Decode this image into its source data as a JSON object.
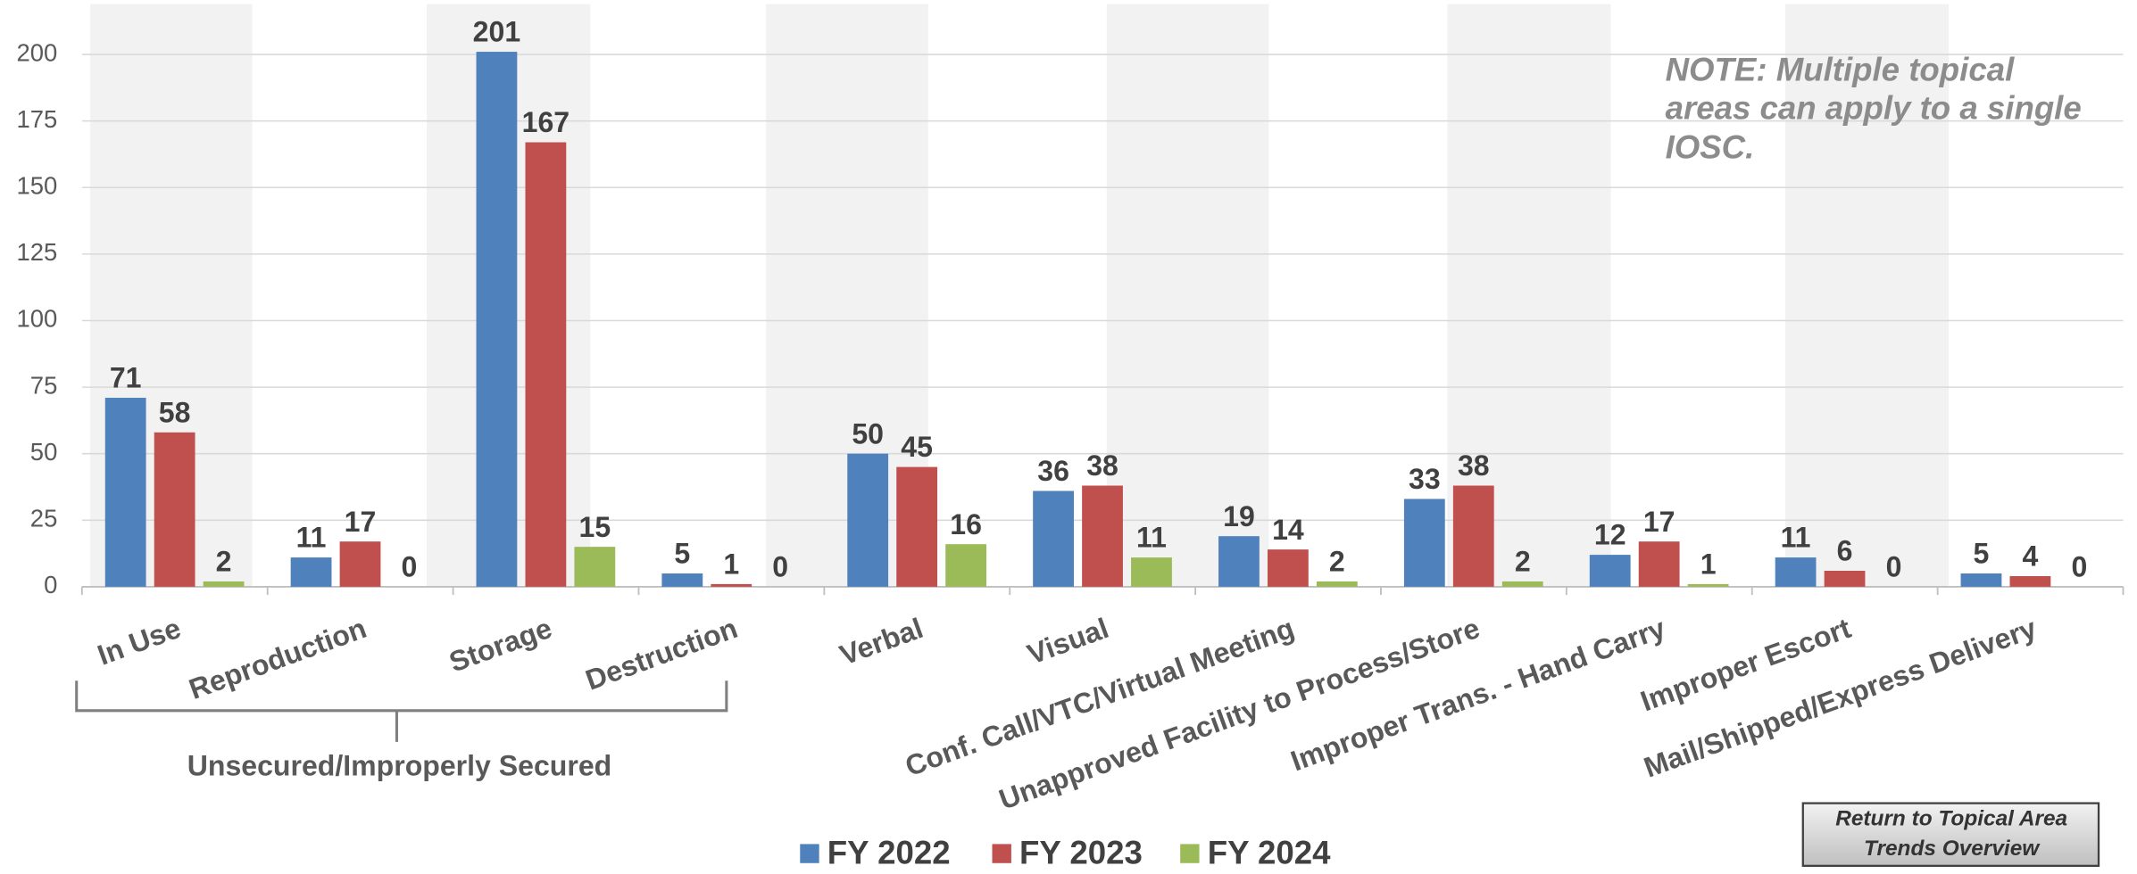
{
  "chart_data": {
    "type": "bar",
    "categories": [
      "In Use",
      "Reproduction",
      "Storage",
      "Destruction",
      "Verbal",
      "Visual",
      "Conf. Call/VTC/Virtual Meeting",
      "Unapproved Facility to Process/Store",
      "Improper Trans. - Hand Carry",
      "Improper Escort",
      "Mail/Shipped/Express Delivery"
    ],
    "series": [
      {
        "name": "FY 2022",
        "color": "#4f81bd",
        "values": [
          71,
          11,
          201,
          5,
          50,
          36,
          19,
          33,
          12,
          11,
          5
        ]
      },
      {
        "name": "FY 2023",
        "color": "#c0504d",
        "values": [
          58,
          17,
          167,
          1,
          45,
          38,
          14,
          38,
          17,
          6,
          4
        ]
      },
      {
        "name": "FY 2024",
        "color": "#9bbb59",
        "values": [
          2,
          0,
          15,
          0,
          16,
          11,
          2,
          2,
          1,
          0,
          0
        ]
      }
    ],
    "ylim": [
      0,
      200
    ],
    "yticks": [
      0,
      25,
      50,
      75,
      100,
      125,
      150,
      175,
      200
    ],
    "grid": true,
    "legend": "bottom",
    "group_label": "Unsecured/Improperly Secured",
    "note": [
      "NOTE:  Multiple topical",
      "areas can apply to a single",
      "IOSC."
    ]
  },
  "button": {
    "label": [
      "Return to Topical Area",
      "Trends Overview"
    ]
  }
}
